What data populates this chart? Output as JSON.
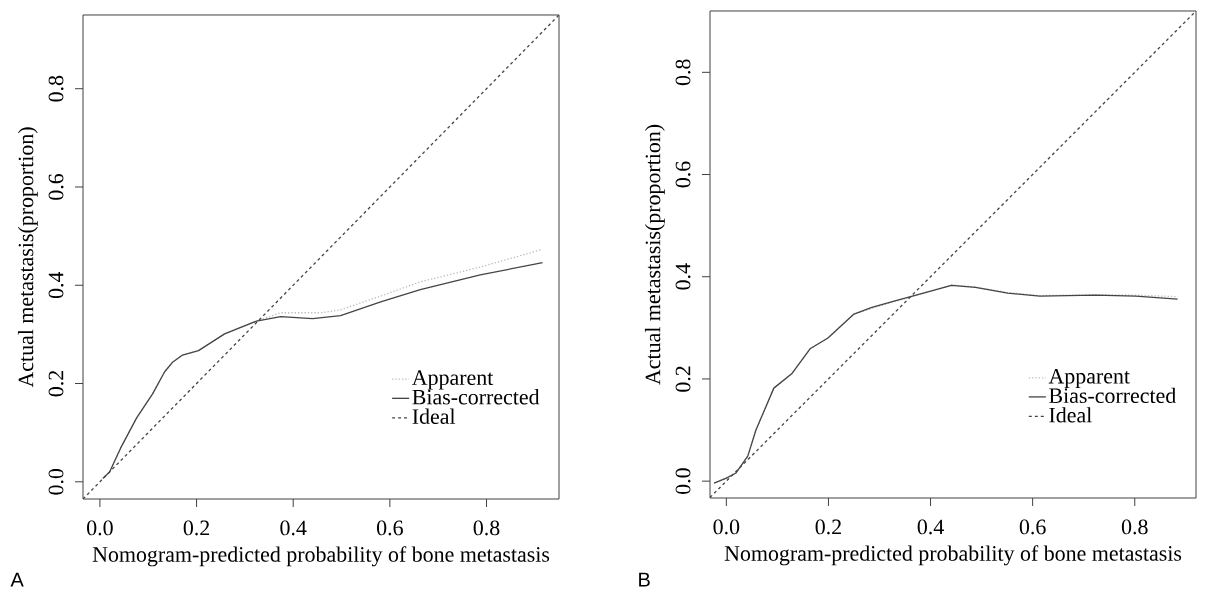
{
  "chart_data": [
    {
      "type": "line",
      "xlabel": "Nomogram-predicted probability of bone metastasis",
      "ylabel": "Actual metastasis(proportion)",
      "annotations": [
        "A"
      ],
      "xlim": [
        -0.035,
        0.95
      ],
      "ylim": [
        -0.035,
        0.95
      ],
      "xticks": [
        {
          "value": 0,
          "label": "0.0"
        },
        0.2,
        0.4,
        0.6,
        0.8
      ],
      "yticks": [
        {
          "value": 0,
          "label": "0.0"
        },
        0.2,
        0.4,
        0.6,
        0.8
      ],
      "legend": "bottom right",
      "grid": false,
      "series": [
        {
          "name": "Apparent",
          "color": "#bbbbbb",
          "line_style": "dotted",
          "x": [
            0.006,
            0.02,
            0.043,
            0.076,
            0.109,
            0.134,
            0.151,
            0.171,
            0.204,
            0.258,
            0.324,
            0.374,
            0.457,
            0.498,
            0.581,
            0.663,
            0.787,
            0.912
          ],
          "values": [
            0.007,
            0.02,
            0.069,
            0.13,
            0.179,
            0.224,
            0.244,
            0.258,
            0.267,
            0.301,
            0.327,
            0.344,
            0.344,
            0.35,
            0.378,
            0.407,
            0.437,
            0.472
          ]
        },
        {
          "name": "Bias-corrected",
          "color": "#444444",
          "line_style": "solid",
          "x": [
            0.006,
            0.02,
            0.043,
            0.076,
            0.109,
            0.134,
            0.151,
            0.171,
            0.204,
            0.258,
            0.324,
            0.374,
            0.44,
            0.498,
            0.581,
            0.663,
            0.787,
            0.916
          ],
          "values": [
            0.007,
            0.02,
            0.069,
            0.13,
            0.179,
            0.224,
            0.244,
            0.258,
            0.267,
            0.301,
            0.327,
            0.336,
            0.332,
            0.338,
            0.366,
            0.391,
            0.421,
            0.446
          ]
        },
        {
          "name": "Ideal",
          "color": "#444444",
          "line_style": "dashed",
          "x": [
            -0.035,
            0.95
          ],
          "values": [
            -0.035,
            0.95
          ]
        }
      ]
    },
    {
      "type": "line",
      "xlabel": "Nomogram-predicted probability of bone metastasis",
      "ylabel": "Actual metastasis(proportion)",
      "annotations": [
        "B"
      ],
      "xlim": [
        -0.032,
        0.92
      ],
      "ylim": [
        -0.033,
        0.92
      ],
      "xticks": [
        {
          "value": 0,
          "label": "0.0"
        },
        0.2,
        0.4,
        0.6,
        0.8
      ],
      "yticks": [
        {
          "value": 0,
          "label": "0.0"
        },
        0.2,
        0.4,
        0.6,
        0.8
      ],
      "legend": "bottom right",
      "grid": false,
      "series": [
        {
          "name": "Apparent",
          "color": "#bbbbbb",
          "line_style": "dotted",
          "x": [
            -0.024,
            0.0,
            0.019,
            0.042,
            0.058,
            0.093,
            0.128,
            0.164,
            0.199,
            0.25,
            0.285,
            0.332,
            0.379,
            0.441,
            0.488,
            0.551,
            0.614,
            0.723,
            0.802,
            0.884
          ],
          "values": [
            -0.004,
            0.006,
            0.016,
            0.049,
            0.1,
            0.182,
            0.21,
            0.259,
            0.28,
            0.327,
            0.338,
            0.352,
            0.366,
            0.384,
            0.38,
            0.369,
            0.363,
            0.365,
            0.364,
            0.361
          ]
        },
        {
          "name": "Bias-corrected",
          "color": "#444444",
          "line_style": "solid",
          "x": [
            -0.024,
            0.0,
            0.019,
            0.042,
            0.058,
            0.093,
            0.128,
            0.164,
            0.199,
            0.25,
            0.285,
            0.332,
            0.379,
            0.441,
            0.488,
            0.551,
            0.614,
            0.723,
            0.802,
            0.884
          ],
          "values": [
            -0.004,
            0.006,
            0.016,
            0.049,
            0.1,
            0.182,
            0.21,
            0.259,
            0.28,
            0.327,
            0.34,
            0.353,
            0.366,
            0.383,
            0.379,
            0.368,
            0.362,
            0.364,
            0.362,
            0.356
          ]
        },
        {
          "name": "Ideal",
          "color": "#444444",
          "line_style": "dashed",
          "x": [
            -0.032,
            0.92
          ],
          "values": [
            -0.032,
            0.92
          ]
        }
      ]
    }
  ]
}
